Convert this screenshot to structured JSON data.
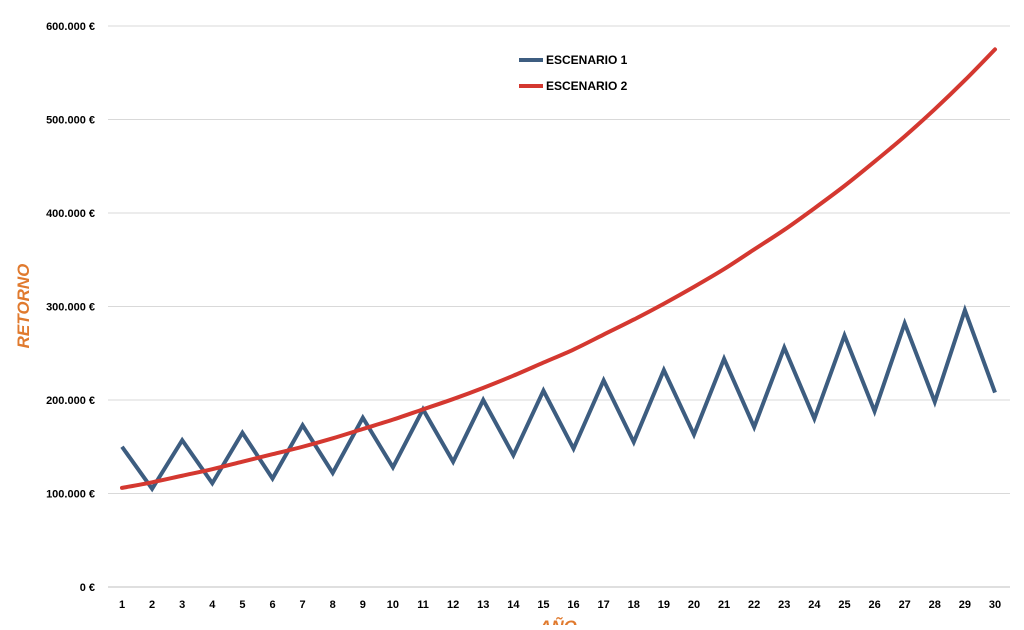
{
  "chart_data": {
    "type": "line",
    "xlabel": "AÑO",
    "ylabel": "RETORNO",
    "x": [
      1,
      2,
      3,
      4,
      5,
      6,
      7,
      8,
      9,
      10,
      11,
      12,
      13,
      14,
      15,
      16,
      17,
      18,
      19,
      20,
      21,
      22,
      23,
      24,
      25,
      26,
      27,
      28,
      29,
      30
    ],
    "ylim": [
      0,
      600000
    ],
    "yticks": [
      0,
      100000,
      200000,
      300000,
      400000,
      500000,
      600000
    ],
    "ytick_labels": [
      "0 €",
      "100.000 €",
      "200.000 €",
      "300.000 €",
      "400.000 €",
      "500.000 €",
      "600.000 €"
    ],
    "grid": true,
    "legend_position": "top-center",
    "series": [
      {
        "name": "ESCENARIO 1",
        "color": "#3d5d80",
        "values": [
          150000,
          105000,
          157000,
          111000,
          165000,
          116000,
          173000,
          122000,
          181000,
          128000,
          190000,
          134000,
          200000,
          141000,
          210000,
          148000,
          221000,
          155000,
          232000,
          163000,
          244000,
          171000,
          256000,
          180000,
          269000,
          188000,
          282000,
          198000,
          296000,
          208000
        ]
      },
      {
        "name": "ESCENARIO 2",
        "color": "#d43830",
        "values": [
          106000,
          112000,
          119000,
          126000,
          134000,
          142000,
          150000,
          159000,
          169000,
          179000,
          190000,
          201000,
          213000,
          226000,
          240000,
          254000,
          270000,
          286000,
          303000,
          321000,
          340000,
          361000,
          382000,
          405000,
          429000,
          455000,
          482000,
          511000,
          542000,
          575000
        ]
      }
    ]
  }
}
